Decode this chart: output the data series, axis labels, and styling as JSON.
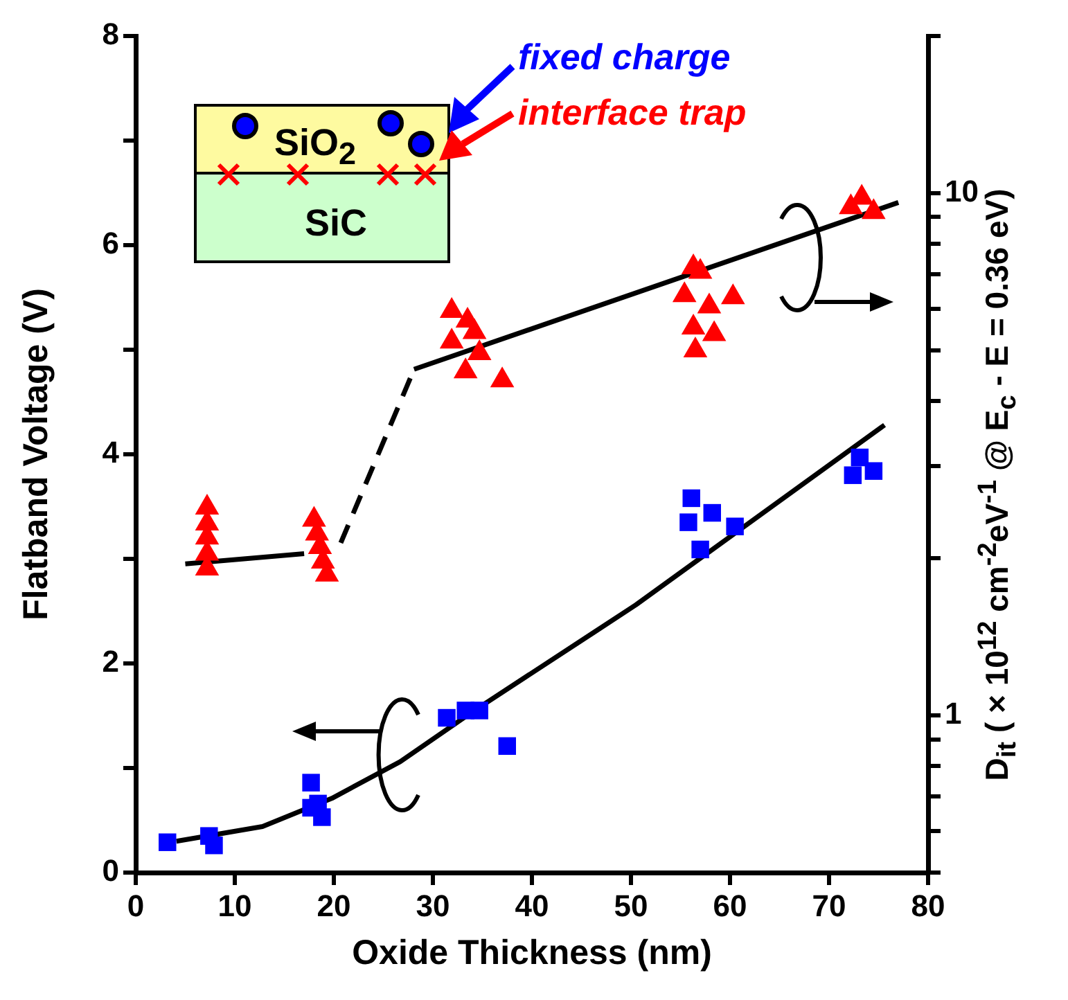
{
  "chart_data": {
    "type": "scatter",
    "xlabel": "Oxide Thickness (nm)",
    "ylabel": "Flatband Voltage (V)",
    "y2label": "D$_{it}$ ( × 10$^{12}$ cm$^{-2}$eV$^{-1}$ @ E$_{c}$ - E = 0.36 eV)",
    "annotations": [
      "SiO$_{2}$",
      "SiC",
      "fixed charge",
      "interface trap"
    ],
    "xlim": [
      0,
      80
    ],
    "xticks": [
      0,
      10,
      20,
      30,
      40,
      50,
      60,
      70,
      80
    ],
    "ylim": [
      0,
      8
    ],
    "yticks": [
      0,
      {
        "value": 1,
        "label": null
      },
      2,
      {
        "value": 3,
        "label": null
      },
      4,
      {
        "value": 5,
        "label": null
      },
      6,
      {
        "value": 7,
        "label": null
      },
      8
    ],
    "y2lim": [
      0.5,
      20
    ],
    "y2ticks": [
      {
        "value": 0.5,
        "label": null
      },
      {
        "value": 0.6,
        "label": null
      },
      {
        "value": 0.7,
        "label": null
      },
      {
        "value": 0.8,
        "label": null
      },
      {
        "value": 0.9,
        "label": null
      },
      1,
      {
        "value": 2,
        "label": null
      },
      {
        "value": 3,
        "label": null
      },
      {
        "value": 4,
        "label": null
      },
      {
        "value": 5,
        "label": null
      },
      {
        "value": 6,
        "label": null
      },
      {
        "value": 7,
        "label": null
      },
      {
        "value": 8,
        "label": null
      },
      {
        "value": 9,
        "label": null
      },
      10,
      {
        "value": 20,
        "label": null
      }
    ],
    "log": "y2",
    "grid": false,
    "legend": false,
    "series": [
      {
        "marker": "square",
        "color": "#0000ff",
        "x": [
          3.2,
          7.4,
          7.9,
          17.7,
          17.7,
          18.8,
          18.4,
          31.4,
          33.3,
          34.7,
          37.5,
          56.1,
          55.8,
          58.2,
          60.5,
          57.0,
          73.1,
          74.5,
          72.4
        ],
        "values": [
          0.29,
          0.35,
          0.26,
          0.86,
          0.62,
          0.53,
          0.66,
          1.48,
          1.55,
          1.55,
          1.21,
          3.58,
          3.35,
          3.44,
          3.31,
          3.09,
          3.97,
          3.84,
          3.8
        ]
      },
      {
        "marker": "triangle",
        "color": "#ff0000",
        "axis": "y2",
        "x": [
          7.2,
          7.2,
          7.2,
          7.2,
          7.2,
          18.0,
          18.3,
          18.6,
          18.9,
          19.3,
          31.9,
          33.5,
          31.9,
          34.2,
          34.7,
          33.3,
          37.0,
          56.3,
          57.0,
          55.4,
          57.9,
          60.3,
          56.3,
          58.4,
          56.5,
          73.3,
          72.2,
          74.5
        ],
        "values": [
          2.5,
          2.33,
          2.19,
          2.04,
          1.91,
          2.37,
          2.23,
          2.1,
          1.97,
          1.86,
          5.95,
          5.7,
          5.2,
          5.42,
          4.94,
          4.56,
          4.38,
          7.21,
          7.07,
          6.38,
          6.07,
          6.32,
          5.53,
          5.37,
          5.0,
          9.8,
          9.4,
          9.2
        ]
      },
      {
        "type": "line",
        "marker": "none",
        "line_style": "solid",
        "color": "#000000",
        "x": [
          4.1,
          12.8,
          19.8,
          26.7,
          34.2,
          46.3,
          50.5,
          75.6
        ],
        "values": [
          0.3,
          0.44,
          0.71,
          1.06,
          1.55,
          2.3,
          2.56,
          4.28
        ]
      },
      {
        "type": "line",
        "marker": "none",
        "line_style": "solid",
        "color": "#000000",
        "axis": "y2",
        "x": [
          5,
          17
        ],
        "values": [
          1.95,
          2.04
        ]
      },
      {
        "type": "line",
        "marker": "none",
        "line_style": "dashed",
        "color": "#000000",
        "axis": "y2",
        "x": [
          20.7,
          28.1
        ],
        "values": [
          2.14,
          4.6
        ]
      },
      {
        "type": "line",
        "marker": "none",
        "line_style": "solid",
        "color": "#000000",
        "axis": "y2",
        "x": [
          28.1,
          77
        ],
        "values": [
          4.6,
          9.6
        ]
      }
    ]
  }
}
